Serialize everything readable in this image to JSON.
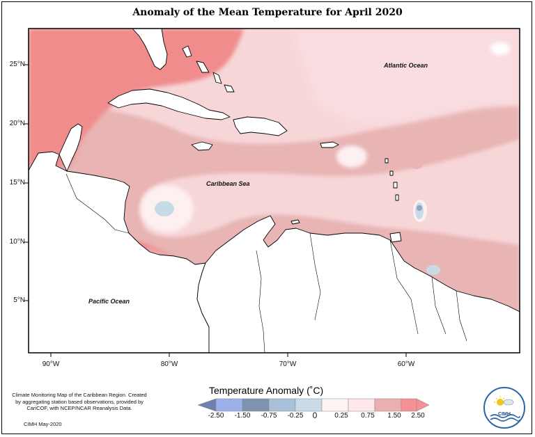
{
  "title": "Anomaly of the Mean Temperature for April 2020",
  "map": {
    "lat_labels": [
      "25°N",
      "20°N",
      "15°N",
      "10°N",
      "5°N"
    ],
    "lon_labels": [
      "90°W",
      "80°W",
      "70°W",
      "60°W"
    ],
    "ocean_labels": {
      "atlantic": "Atlantic Ocean",
      "caribbean": "Caribbean Sea",
      "pacific": "Pacific Ocean"
    },
    "colors": {
      "strong_warm": "#f08c8c",
      "warm": "#e8b4b4",
      "mild_warm": "#f7d6d8",
      "slight_warm": "#fdf0f0",
      "slight_cool": "#c7dbe6",
      "cool": "#8fa7bd",
      "land": "#ffffff",
      "coast": "#000000"
    }
  },
  "legend": {
    "title": "Temperature Anomaly (˚C)",
    "ticks": [
      "-2.50",
      "-1.50",
      "-0.75",
      "-0.25",
      "0",
      "0.25",
      "0.75",
      "1.50",
      "2.50"
    ],
    "colors": [
      "#6f7fae",
      "#9cb1ea",
      "#7e93b0",
      "#c8dbe7",
      "#ffffff",
      "#fde7e8",
      "#f4c9cc",
      "#ebaeb1",
      "#f49096"
    ]
  },
  "credits": {
    "text": "Climate Monitoring Map of the Caribbean Region. Created by aggregating station based observations, provided by CariCOF, with NCEP/NCAR Reanalysis Data.",
    "date": "CIMH May-2020"
  },
  "logo": {
    "text": "CIMH",
    "icon": "cimh-logo-icon"
  }
}
